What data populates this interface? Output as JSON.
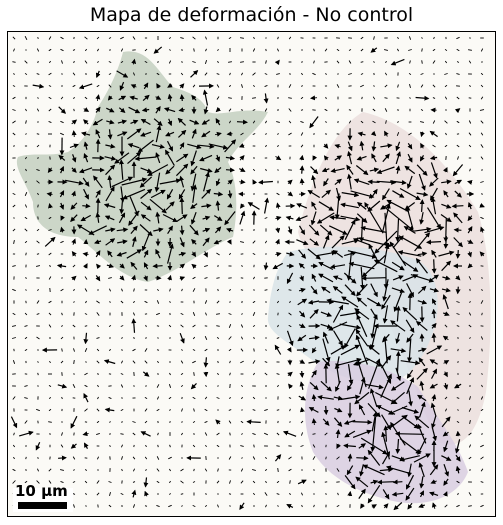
{
  "figure": {
    "title": "Mapa de deformación - No control",
    "scale_bar_label": "10 µm"
  },
  "colors": {
    "background": "#fbfaf6",
    "arrow": "#000000",
    "cell_green": "#c3cfc0",
    "cell_pink": "#ebdedd",
    "cell_blue": "#d8e3e8",
    "cell_purple": "#d8cce0"
  },
  "content": {
    "type": "traction-force displacement quiver field over fluorescent cell regions",
    "regions": [
      "green cell cluster (upper left)",
      "pink cell (right)",
      "blue cell (center right)",
      "purple cell (lower right)"
    ]
  }
}
